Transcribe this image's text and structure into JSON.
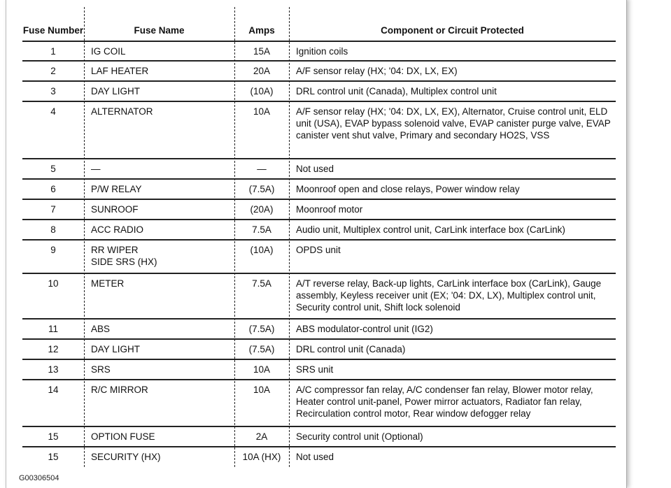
{
  "headers": {
    "number": "Fuse Number",
    "name": "Fuse Name",
    "amps": "Amps",
    "component": "Component or Circuit Protected"
  },
  "rows": [
    {
      "number": "1",
      "name": "IG COIL",
      "amps": "15A",
      "component": "Ignition coils"
    },
    {
      "number": "2",
      "name": "LAF HEATER",
      "amps": "20A",
      "component": "A/F sensor relay (HX; '04: DX, LX, EX)"
    },
    {
      "number": "3",
      "name": "DAY LIGHT",
      "amps": "(10A)",
      "component": "DRL control unit (Canada), Multiplex control unit"
    },
    {
      "number": "4",
      "name": "ALTERNATOR",
      "amps": "10A",
      "component": "A/F sensor relay (HX; '04: DX, LX, EX), Alternator, Cruise control unit, ELD unit (USA), EVAP bypass solenoid valve, EVAP canister purge valve, EVAP canister vent shut valve, Primary and secondary HO2S, VSS"
    },
    {
      "number": "5",
      "name": "—",
      "amps": "—",
      "component": "Not used"
    },
    {
      "number": "6",
      "name": "P/W RELAY",
      "amps": "(7.5A)",
      "component": "Moonroof open and close relays, Power window relay"
    },
    {
      "number": "7",
      "name": "SUNROOF",
      "amps": "(20A)",
      "component": "Moonroof motor"
    },
    {
      "number": "8",
      "name": "ACC RADIO",
      "amps": "7.5A",
      "component": "Audio unit, Multiplex control unit, CarLink interface box (CarLink)"
    },
    {
      "number": "9",
      "name": "RR WIPER\nSIDE SRS (HX)",
      "amps": "(10A)",
      "component": "OPDS unit"
    },
    {
      "number": "10",
      "name": "METER",
      "amps": "7.5A",
      "component": "A/T reverse relay, Back-up lights, CarLink interface box (CarLink), Gauge assembly, Keyless receiver unit (EX; '04: DX, LX), Multiplex control unit, Security control unit, Shift lock solenoid"
    },
    {
      "number": "11",
      "name": "ABS",
      "amps": "(7.5A)",
      "component": "ABS modulator-control unit (IG2)"
    },
    {
      "number": "12",
      "name": "DAY LIGHT",
      "amps": "(7.5A)",
      "component": "DRL control unit (Canada)"
    },
    {
      "number": "13",
      "name": "SRS",
      "amps": "10A",
      "component": "SRS unit"
    },
    {
      "number": "14",
      "name": "R/C MIRROR",
      "amps": "10A",
      "component": "A/C compressor fan relay,  A/C condenser fan relay, Blower motor relay, Heater control unit-panel,  Power mirror actuators, Radiator fan relay, Recirculation control motor, Rear window defogger relay"
    },
    {
      "number": "15",
      "name": "OPTION FUSE",
      "amps": "2A",
      "component": "Security control unit (Optional)"
    },
    {
      "number": "15",
      "name": "SECURITY (HX)",
      "amps": "10A (HX)",
      "component": "Not used"
    }
  ],
  "figure_code": "G00306504"
}
